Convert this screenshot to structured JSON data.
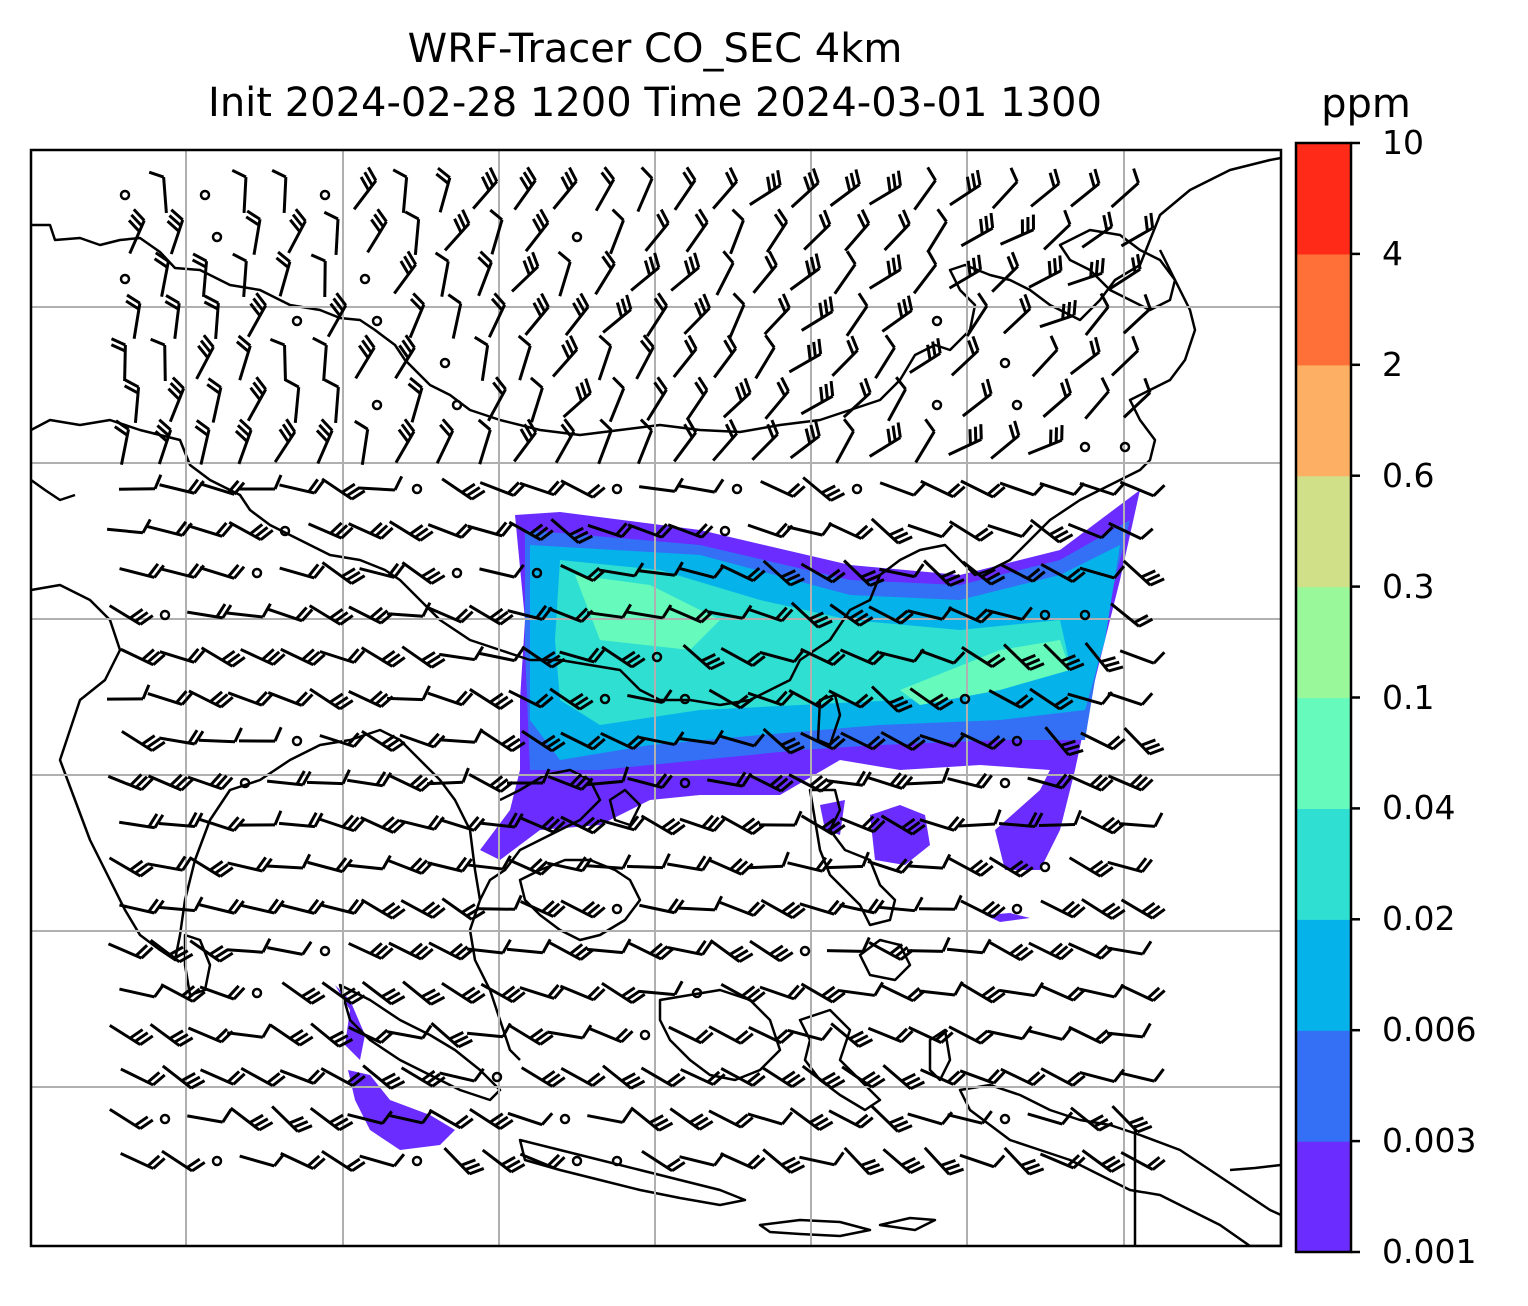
{
  "title": {
    "line1": "WRF-Tracer CO_SEC 4km",
    "line2": "Init 2024-02-28 1200 Time 2024-03-01 1300"
  },
  "colorbar": {
    "unit": "ppm",
    "levels": [
      "0.001",
      "0.003",
      "0.006",
      "0.02",
      "0.04",
      "0.1",
      "0.3",
      "0.6",
      "2",
      "4",
      "10"
    ],
    "colors": [
      "#6a2cff",
      "#3370f5",
      "#05b3ea",
      "#2fdfd2",
      "#66fbbd",
      "#99f99a",
      "#cfe089",
      "#fdb064",
      "#fe7038",
      "#ff2a18"
    ]
  },
  "map": {
    "background": "#ffffff",
    "gridlines": true,
    "grid_color": "#b0b0b0",
    "coastline_color": "#000000",
    "wind_barbs": true
  }
}
